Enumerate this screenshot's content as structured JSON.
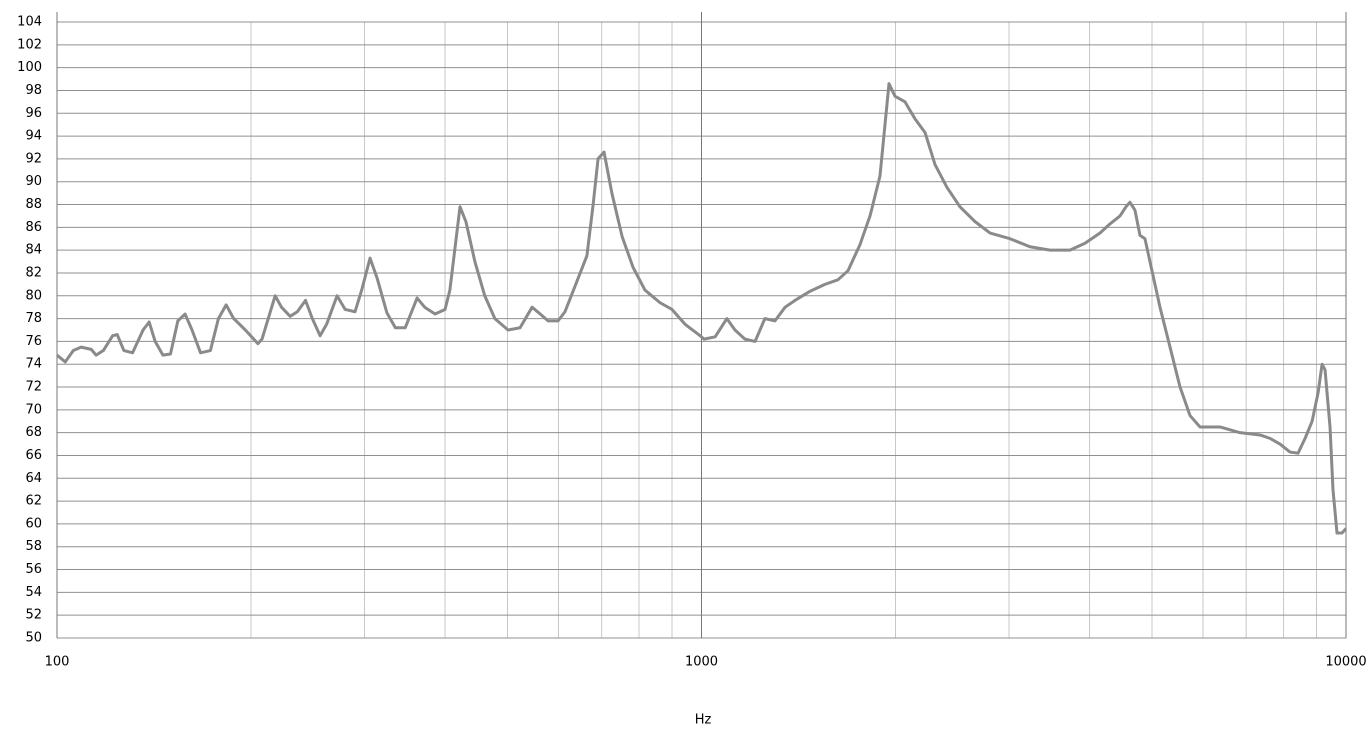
{
  "chart_data": {
    "type": "line",
    "x_label": "Hz",
    "xlog": true,
    "grid": true,
    "xlim": [
      100,
      10000
    ],
    "xticks": [
      100,
      1000,
      10000
    ],
    "ylim": [
      50,
      104
    ],
    "yticks": [
      50,
      52,
      54,
      56,
      58,
      60,
      62,
      64,
      66,
      68,
      70,
      72,
      74,
      76,
      78,
      80,
      82,
      84,
      86,
      88,
      90,
      92,
      94,
      96,
      98,
      100,
      102,
      104
    ],
    "x": [
      100,
      103,
      106,
      109,
      113,
      115,
      118,
      122,
      124,
      127,
      131,
      136,
      139,
      142,
      146,
      150,
      154,
      158,
      162,
      167,
      173,
      178,
      183,
      188,
      196,
      205,
      208,
      218,
      223,
      230,
      236,
      243,
      249,
      256,
      262,
      272,
      280,
      290,
      297,
      306,
      314,
      325,
      335,
      347,
      362,
      372,
      386,
      400,
      407,
      422,
      431,
      445,
      461,
      478,
      501,
      523,
      546,
      562,
      578,
      599,
      614,
      636,
      664,
      679,
      691,
      706,
      726,
      753,
      783,
      817,
      862,
      900,
      943,
      995,
      1009,
      1050,
      1095,
      1127,
      1168,
      1211,
      1254,
      1300,
      1348,
      1397,
      1474,
      1554,
      1628,
      1688,
      1762,
      1826,
      1892,
      1954,
      1996,
      2069,
      2145,
      2223,
      2303,
      2404,
      2518,
      2657,
      2804,
      3011,
      3233,
      3473,
      3730,
      3936,
      4153,
      4303,
      4460,
      4556,
      4622,
      4705,
      4790,
      4876,
      4964,
      5145,
      5333,
      5527,
      5728,
      5936,
      6376,
      6847,
      7355,
      7623,
      7900,
      8187,
      8425,
      8640,
      8859,
      9051,
      9181,
      9279,
      9445,
      9546,
      9684,
      9858,
      10000
    ],
    "series": [
      {
        "color": "#8a8a8a",
        "values": [
          74.8,
          74.2,
          75.2,
          75.5,
          75.3,
          74.8,
          75.2,
          76.5,
          76.6,
          75.2,
          75,
          77,
          77.7,
          76,
          74.8,
          74.9,
          77.8,
          78.4,
          77,
          75,
          75.2,
          78,
          79.2,
          78,
          77,
          75.8,
          76.2,
          80,
          79,
          78.2,
          78.6,
          79.6,
          78,
          76.5,
          77.5,
          80,
          78.8,
          78.6,
          80.5,
          83.3,
          81.5,
          78.5,
          77.2,
          77.2,
          79.8,
          79,
          78.4,
          78.8,
          80.5,
          87.8,
          86.5,
          83,
          80,
          78,
          77,
          77.2,
          79,
          78.4,
          77.8,
          77.8,
          78.6,
          80.8,
          83.5,
          88,
          92,
          92.6,
          89,
          85.2,
          82.5,
          80.5,
          79.4,
          78.8,
          77.5,
          76.5,
          76.2,
          76.4,
          78,
          77,
          76.2,
          76,
          78,
          77.8,
          79,
          79.6,
          80.4,
          81,
          81.4,
          82.2,
          84.5,
          87,
          90.5,
          98.6,
          97.5,
          97,
          95.5,
          94.3,
          91.5,
          89.5,
          87.8,
          86.5,
          85.5,
          85,
          84.3,
          84,
          84,
          84.6,
          85.5,
          86.3,
          87,
          87.8,
          88.2,
          87.5,
          85.3,
          85,
          83,
          79,
          75.5,
          72,
          69.5,
          68.5,
          68.5,
          68,
          67.8,
          67.5,
          67,
          66.3,
          66.2,
          67.5,
          69,
          71.5,
          74,
          73.5,
          68.5,
          63,
          59.2,
          59.2,
          59.6
        ]
      }
    ]
  }
}
